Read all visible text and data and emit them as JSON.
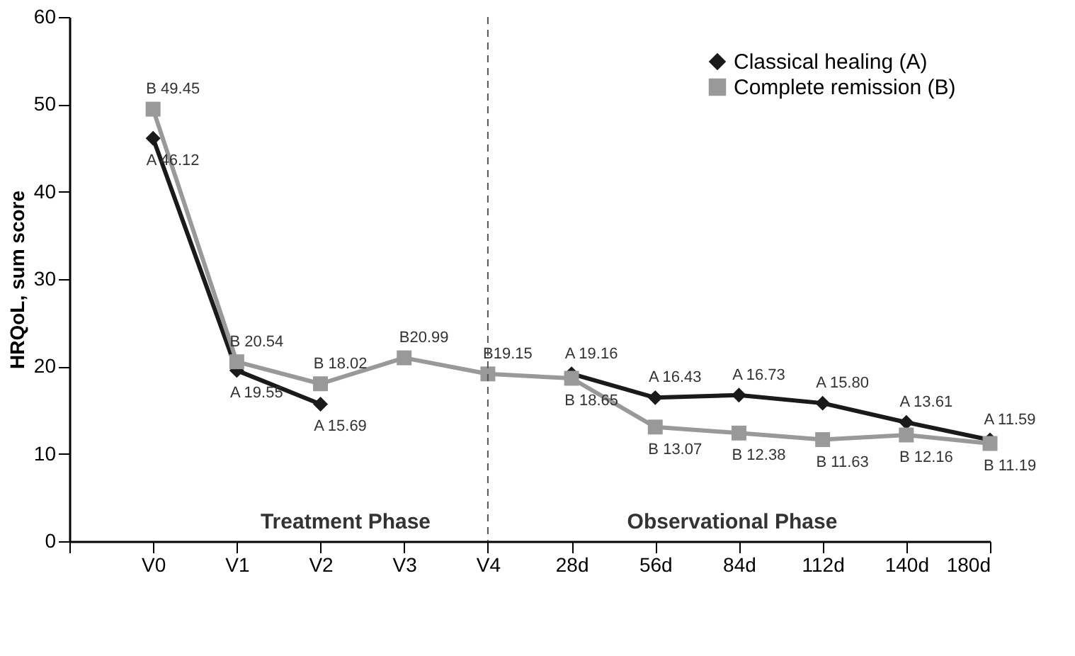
{
  "chart_data": {
    "type": "line",
    "ylabel": "HRQoL, sum score",
    "categories": [
      "V0",
      "V1",
      "V2",
      "V3",
      "V4",
      "28d",
      "56d",
      "84d",
      "112d",
      "140d",
      "180d"
    ],
    "series": [
      {
        "name": "Classical healing (A)",
        "color": "#1a1a1a",
        "marker": "diamond",
        "line_style": "solid",
        "values": [
          46.12,
          19.55,
          15.69,
          null,
          null,
          19.16,
          16.43,
          16.73,
          15.8,
          13.61,
          11.59
        ],
        "value_labels": [
          "A 46.12",
          "A 19.55",
          "A 15.69",
          null,
          null,
          "A 19.16",
          "A 16.43",
          "A 16.73",
          "A 15.80",
          "A 13.61",
          "A 11.59"
        ]
      },
      {
        "name": "Complete remission (B)",
        "color": "#999999",
        "marker": "square",
        "line_style": "solid",
        "values": [
          49.45,
          20.54,
          18.02,
          20.99,
          19.15,
          18.65,
          13.07,
          12.38,
          11.63,
          12.16,
          11.19
        ],
        "value_labels": [
          "B 49.45",
          "B 20.54",
          "B 18.02",
          "B20.99",
          "B19.15",
          "B 18.65",
          "B 13.07",
          "B 12.38",
          "B 11.63",
          "B 12.16",
          "B 11.19"
        ]
      }
    ],
    "ylim": [
      0,
      60
    ],
    "yticks": [
      0,
      10,
      20,
      30,
      40,
      50,
      60
    ],
    "grid": false,
    "legend": "top right",
    "ref_lines": [
      {
        "axis": "x",
        "value": "V4",
        "line_style": "dashed",
        "color": "#555555"
      }
    ],
    "annotations": [
      "Treatment Phase",
      "Observational Phase"
    ]
  }
}
